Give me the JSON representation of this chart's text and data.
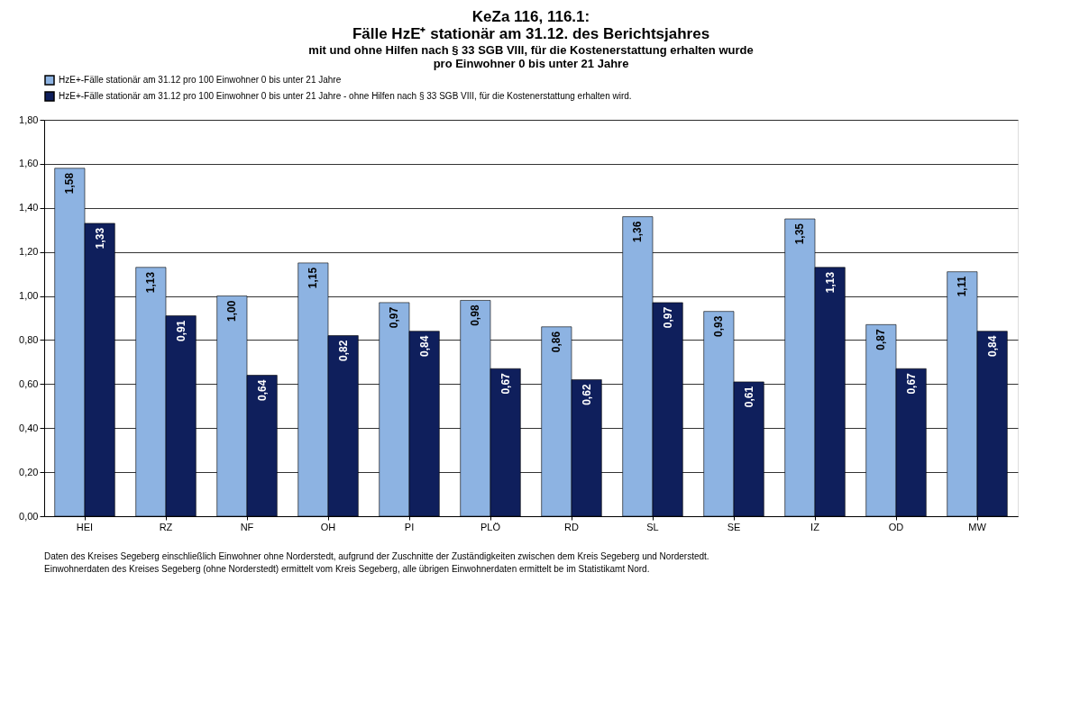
{
  "chart_data": {
    "type": "bar",
    "title": [
      "KeZa 116, 116.1:",
      "Fälle HzE⁺ stationär am 31.12. des Berichtsjahres"
    ],
    "subtitle": [
      "mit und ohne Hilfen nach § 33 SGB VIII, für die Kostenerstattung erhalten wurde",
      "pro Einwohner 0 bis unter 21 Jahre"
    ],
    "categories": [
      "HEI",
      "RZ",
      "NF",
      "OH",
      "PI",
      "PLÖ",
      "RD",
      "SL",
      "SE",
      "IZ",
      "OD",
      "MW"
    ],
    "series": [
      {
        "name": "HzE+-Fälle stationär am 31.12 pro 100 Einwohner 0 bis unter 21 Jahre",
        "color": "#8db3e2",
        "values": [
          1.58,
          1.13,
          1.0,
          1.15,
          0.97,
          0.98,
          0.86,
          1.36,
          0.93,
          1.35,
          0.87,
          1.11
        ]
      },
      {
        "name": "HzE+-Fälle stationär am 31.12 pro 100 Einwohner 0 bis unter 21 Jahre - ohne Hilfen nach § 33 SGB VIII, für die Kostenerstattung erhalten wird.",
        "color": "#0f1f5c",
        "values": [
          1.33,
          0.91,
          0.64,
          0.82,
          0.84,
          0.67,
          0.62,
          0.97,
          0.61,
          1.13,
          0.67,
          0.84
        ]
      }
    ],
    "ylim": [
      0,
      1.8
    ],
    "yticks": [
      {
        "value": 0,
        "label": "0,00"
      },
      {
        "value": 0.2,
        "label": "0,20"
      },
      {
        "value": 0.4,
        "label": "0,40"
      },
      {
        "value": 0.6,
        "label": "0,60"
      },
      {
        "value": 0.8,
        "label": "0,80"
      },
      {
        "value": 1.0,
        "label": "1,00"
      },
      {
        "value": 1.2,
        "label": "1,20"
      },
      {
        "value": 1.4,
        "label": "1,40"
      },
      {
        "value": 1.6,
        "label": "1,60"
      },
      {
        "value": 1.8,
        "label": "1,80"
      }
    ],
    "value_labels": [
      [
        "1,58",
        "1,13",
        "1,00",
        "1,15",
        "0,97",
        "0,98",
        "0,86",
        "1,36",
        "0,93",
        "1,35",
        "0,87",
        "1,11"
      ],
      [
        "1,33",
        "0,91",
        "0,64",
        "0,82",
        "0,84",
        "0,67",
        "0,62",
        "0,97",
        "0,61",
        "1,13",
        "0,67",
        "0,84"
      ]
    ],
    "grid": "y",
    "legend": "top",
    "annotations": [
      "Daten des Kreises Segeberg einschließlich Einwohner ohne Norderstedt, aufgrund der Zuschnitte der Zuständigkeiten zwischen dem Kreis Segeberg und Norderstedt.",
      "Einwohnerdaten des Kreises Segeberg (ohne Norderstedt) ermittelt vom Kreis Segeberg, alle übrigen Einwohnerdaten ermittelt be im Statistikamt Nord."
    ]
  }
}
